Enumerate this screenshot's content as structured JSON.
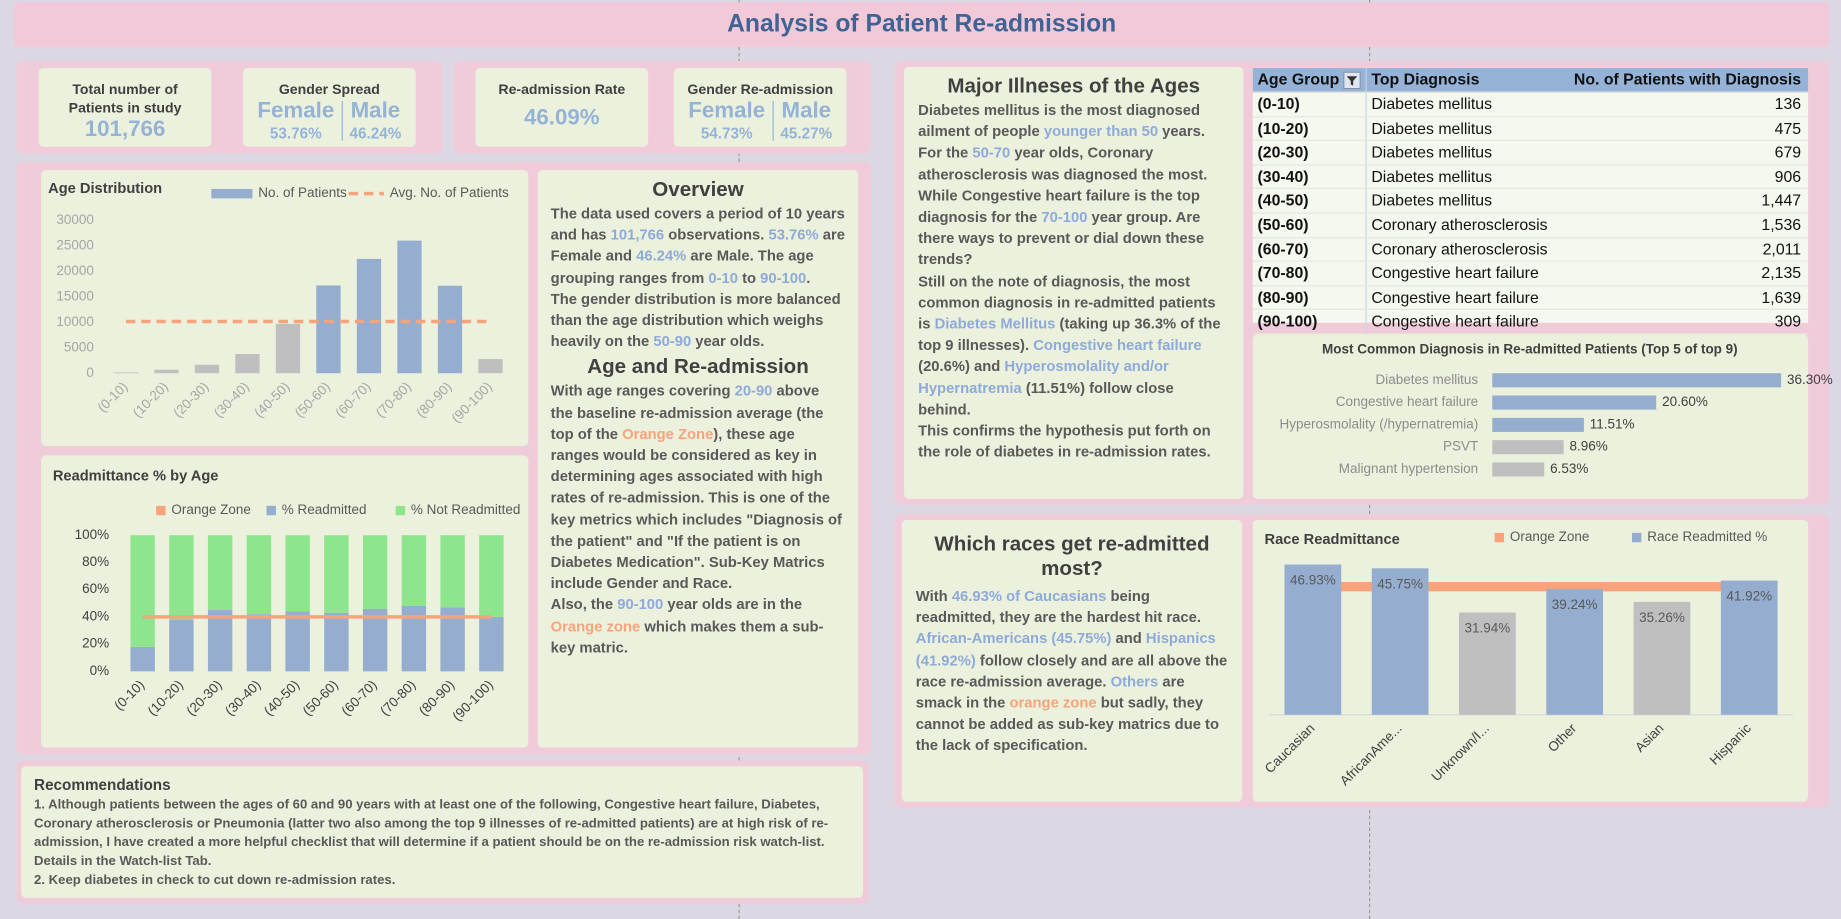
{
  "header": {
    "title": "Analysis of Patient Re-admission"
  },
  "kpis": [
    {
      "label": "Total number of Patients in study",
      "items": [
        {
          "value": "101,766"
        }
      ]
    },
    {
      "label": "Gender Spread",
      "items": [
        {
          "name": "Female",
          "value": "53.76%"
        },
        {
          "name": "Male",
          "value": "46.24%"
        }
      ]
    },
    {
      "label": "Re-admission Rate",
      "items": [
        {
          "value": "46.09%"
        }
      ]
    },
    {
      "label": "Gender Re-admission",
      "items": [
        {
          "name": "Female",
          "value": "54.73%"
        },
        {
          "name": "Male",
          "value": "45.27%"
        }
      ]
    }
  ],
  "overview": {
    "heading": "Overview",
    "paragraphs": [
      [
        "The data used covers a period of 10 years and has ",
        {
          "text": "101,766",
          "color": "#8eaadb"
        },
        " observations. ",
        {
          "text": "53.76%",
          "color": "#8eaadb"
        },
        " are Female and ",
        {
          "text": "46.24%",
          "color": "#8eaadb"
        },
        " are Male. The age grouping ranges from ",
        {
          "text": "0-10",
          "color": "#8eaadb"
        },
        " to ",
        {
          "text": "90-100",
          "color": "#8eaadb"
        },
        "."
      ],
      [
        "The gender distribution is more balanced than the age distribution which weighs heavily on the ",
        {
          "text": "50-90",
          "color": "#8eaadb"
        },
        " year olds."
      ]
    ]
  },
  "age_readmission": {
    "heading": "Age and Re-admission",
    "paragraphs": [
      [
        "With age ranges covering ",
        {
          "text": "20-90",
          "color": "#8eaadb"
        },
        " above the baseline re-admission average (the top of the ",
        {
          "text": "Orange Zone",
          "color": "#f7a47c"
        },
        "), these age ranges would be considered as key in determining ages associated with high rates of re-admission. This is one of the key metrics which includes \"Diagnosis of the patient\" and \"If the patient is on Diabetes Medication\". Sub-Key Matrics include Gender and Race."
      ],
      [
        "Also, the ",
        {
          "text": "90-100",
          "color": "#8eaadb"
        },
        " year olds are in the ",
        {
          "text": "Orange zone",
          "color": "#f7a47c"
        },
        " which makes them a sub-key matric."
      ]
    ]
  },
  "major_illnesses": {
    "heading": "Major Illneses of the Ages",
    "paragraphs": [
      [
        "Diabetes mellitus is the most diagnosed ailment of people ",
        {
          "text": "younger than 50",
          "color": "#8eaadb"
        },
        " years. For the ",
        {
          "text": "50-70",
          "color": "#8eaadb"
        },
        " year olds, Coronary atherosclerosis was diagnosed the most. While Congestive heart failure is the top diagnosis for the ",
        {
          "text": "70-100",
          "color": "#8eaadb"
        },
        " year group. Are there ways to prevent or dial down these trends?"
      ],
      [
        "Still on the note of diagnosis, the most common diagnosis in re-admitted patients is ",
        {
          "text": "Diabetes Mellitus",
          "color": "#8eaadb"
        },
        " (taking up 36.3% of the top 9 illnesses). ",
        {
          "text": "Congestive heart failure",
          "color": "#8eaadb"
        },
        " (20.6%) and ",
        {
          "text": "Hyperosmolality and/or Hypernatremia",
          "color": "#8eaadb"
        },
        " (11.51%) follow close behind."
      ],
      [
        "This confirms the hypothesis put forth on the role of diabetes in re-admission rates."
      ]
    ]
  },
  "races": {
    "heading": "Which races get re-admitted most?",
    "paragraphs": [
      [
        "With ",
        {
          "text": "46.93% of Caucasians",
          "color": "#8eaadb"
        },
        " being readmitted, they are the hardest hit race. ",
        {
          "text": "African-Americans (45.75%)",
          "color": "#8eaadb"
        },
        " and ",
        {
          "text": "Hispanics (41.92%)",
          "color": "#8eaadb"
        },
        " follow closely and are all above the race re-admission average. ",
        {
          "text": "Others",
          "color": "#8eaadb"
        },
        " are smack in the ",
        {
          "text": "orange zone",
          "color": "#f7a47c"
        },
        " but sadly, they cannot be added as sub-key matrics due to the lack of specification."
      ]
    ]
  },
  "recommendations": {
    "heading": "Recommendations",
    "paragraphs": [
      [
        "1. Although patients between the ages of 60 and 90 years with at least one of the following, Congestive heart failure, Diabetes, Coronary atherosclerosis or Pneumonia (latter two also among the top 9 illnesses of re-admitted patients) are at high risk of re-admission, I have created a more helpful checklist that will determine if a patient should be on the re-admission risk watch-list. Details in the Watch-list Tab."
      ],
      [
        "2. Keep diabetes in check to cut down re-admission rates."
      ]
    ]
  },
  "table": {
    "columns": [
      "Age Group",
      "Top Diagnosis",
      "No. of Patients with Diagnosis"
    ],
    "rows": [
      [
        "(0-10)",
        "Diabetes mellitus",
        "136"
      ],
      [
        "(10-20)",
        "Diabetes mellitus",
        "475"
      ],
      [
        "(20-30)",
        "Diabetes mellitus",
        "679"
      ],
      [
        "(30-40)",
        "Diabetes mellitus",
        "906"
      ],
      [
        "(40-50)",
        "Diabetes mellitus",
        "1,447"
      ],
      [
        "(50-60)",
        "Coronary atherosclerosis",
        "1,536"
      ],
      [
        "(60-70)",
        "Coronary atherosclerosis",
        "2,011"
      ],
      [
        "(70-80)",
        "Congestive heart failure",
        "2,135"
      ],
      [
        "(80-90)",
        "Congestive heart failure",
        "1,639"
      ],
      [
        "(90-100)",
        "Congestive heart failure",
        "309"
      ]
    ]
  },
  "chart_data": [
    {
      "type": "combo",
      "title": "Age Distribution",
      "categories": [
        "(0-10)",
        "(10-20)",
        "(20-30)",
        "(30-40)",
        "(40-50)",
        "(50-60)",
        "(60-70)",
        "(70-80)",
        "(80-90)",
        "(90-100)"
      ],
      "series": [
        {
          "name": "No. of Patients",
          "type": "bar",
          "color": "#95adcf",
          "colors": [
            "#bfbfbf",
            "#bfbfbf",
            "#bfbfbf",
            "#bfbfbf",
            "#bfbfbf",
            "#95adcf",
            "#95adcf",
            "#95adcf",
            "#95adcf",
            "#bfbfbf"
          ],
          "values": [
            160,
            690,
            1660,
            3780,
            9690,
            17260,
            22480,
            26070,
            17200,
            2790
          ]
        },
        {
          "name": "Avg. No. of Patients",
          "type": "line",
          "color": "#f7a47c",
          "dash": true,
          "line_width": 3,
          "values": [
            10177,
            10177,
            10177,
            10177,
            10177,
            10177,
            10177,
            10177,
            10177,
            10177
          ]
        }
      ],
      "ylim": [
        0,
        30000
      ],
      "yticks": [
        0,
        5000,
        10000,
        15000,
        20000,
        25000,
        30000
      ],
      "grid": false,
      "legend": "top"
    },
    {
      "type": "stacked_bar",
      "title": "Readmittance % by Age",
      "categories": [
        "(0-10)",
        "(10-20)",
        "(20-30)",
        "(30-40)",
        "(40-50)",
        "(50-60)",
        "(60-70)",
        "(70-80)",
        "(80-90)",
        "(90-100)"
      ],
      "series": [
        {
          "name": "Orange Zone",
          "type": "line",
          "color": "#f7a47c",
          "line_width": 3,
          "values": [
            40,
            40,
            40,
            40,
            40,
            40,
            40,
            40,
            40,
            40
          ]
        },
        {
          "name": "% Readmitted",
          "type": "bar",
          "color": "#95adcf",
          "values": [
            18,
            38,
            45,
            42,
            44,
            43,
            46,
            48,
            47,
            40
          ]
        },
        {
          "name": "% Not Readmitted",
          "type": "bar",
          "color": "#8de68d",
          "values": [
            82,
            62,
            55,
            58,
            56,
            57,
            54,
            52,
            53,
            60
          ]
        }
      ],
      "ylim": [
        0,
        100
      ],
      "yticks": [
        {
          "value": 0,
          "label": "0%"
        },
        {
          "value": 20,
          "label": "20%"
        },
        {
          "value": 40,
          "label": "40%"
        },
        {
          "value": 60,
          "label": "60%"
        },
        {
          "value": 80,
          "label": "80%"
        },
        {
          "value": 100,
          "label": "100%"
        }
      ],
      "grid": false,
      "legend": "top"
    },
    {
      "type": "horizontal_bar",
      "title": "Most Common Diagnosis in Re-admitted Patients (Top 5 of top 9)",
      "categories": [
        "Diabetes mellitus",
        "Congestive heart failure",
        "Hyperosmolality (/hypernatremia)",
        "PSVT",
        "Malignant hypertension"
      ],
      "values": [
        36.3,
        20.6,
        11.51,
        8.96,
        6.53
      ],
      "value_labels": [
        "36.30%",
        "20.60%",
        "11.51%",
        "8.96%",
        "6.53%"
      ],
      "colors": [
        "#95adcf",
        "#95adcf",
        "#95adcf",
        "#bfbfbf",
        "#bfbfbf"
      ]
    },
    {
      "type": "combo",
      "title": "Race Readmittance",
      "categories": [
        "Caucasian",
        "AfricanAme...",
        "Unknown/I...",
        "Other",
        "Asian",
        "Hispanic"
      ],
      "series": [
        {
          "name": "Orange Zone",
          "type": "line",
          "color": "#f7a47c",
          "line_width": 8,
          "values": [
            40,
            40,
            40,
            40,
            40,
            40
          ]
        },
        {
          "name": "Race Readmitted %",
          "type": "bar",
          "color": "#95adcf",
          "colors": [
            "#95adcf",
            "#95adcf",
            "#bfbfbf",
            "#95adcf",
            "#bfbfbf",
            "#95adcf"
          ],
          "values": [
            46.93,
            45.75,
            31.94,
            39.24,
            35.26,
            41.92
          ],
          "value_labels": [
            "46.93%",
            "45.75%",
            "31.94%",
            "39.24%",
            "35.26%",
            "41.92%"
          ]
        }
      ],
      "legend": "top"
    }
  ]
}
